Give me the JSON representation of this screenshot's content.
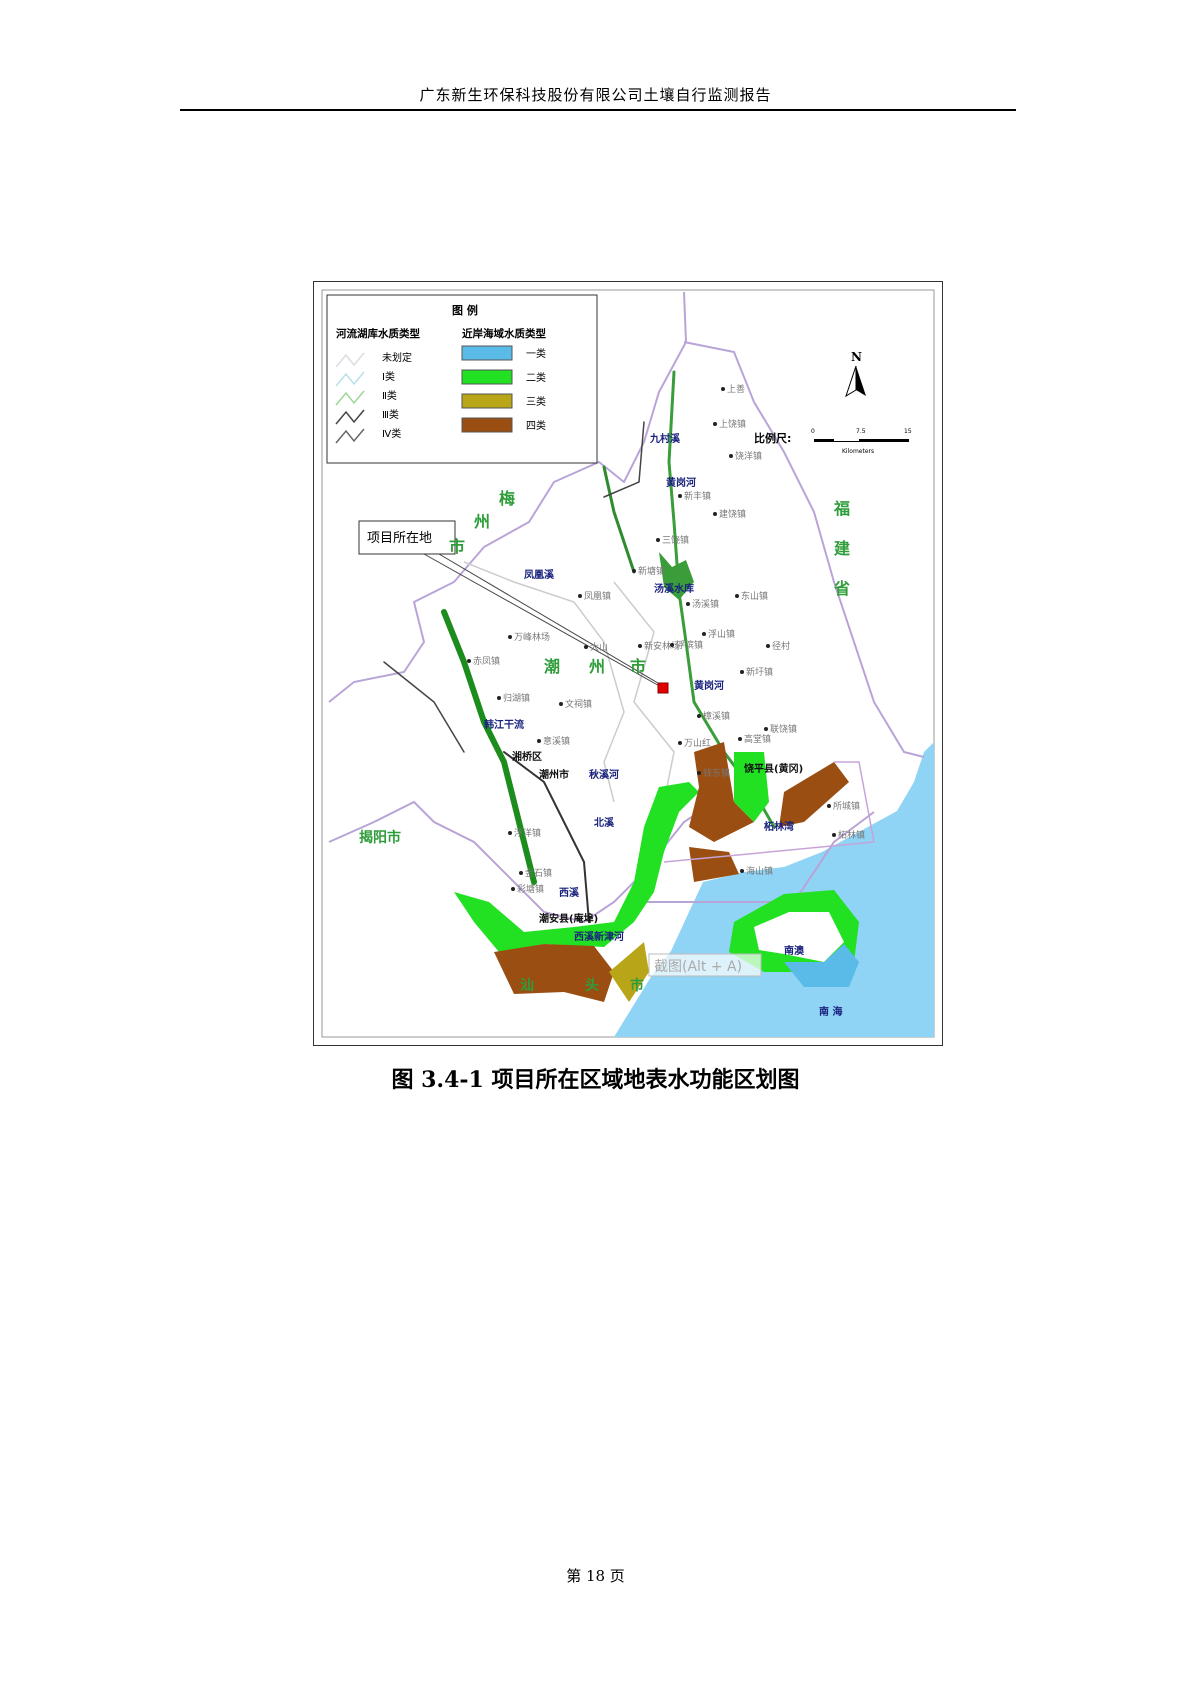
{
  "header": {
    "title": "广东新生环保科技股份有限公司土壤自行监测报告"
  },
  "map": {
    "legend": {
      "title": "图  例",
      "river_heading": "河流湖库水质类型",
      "sea_heading": "近岸海域水质类型",
      "river_items": [
        "未划定",
        "Ⅰ类",
        "Ⅱ类",
        "Ⅲ类",
        "Ⅳ类"
      ],
      "river_colors": [
        "#d9dde3",
        "#b9e0ea",
        "#9fd59a",
        "#444444",
        "#666666"
      ],
      "sea_items": [
        "一类",
        "二类",
        "三类",
        "四类"
      ],
      "sea_colors": [
        "#5bbbe8",
        "#22e022",
        "#b8a618",
        "#9a4e12"
      ]
    },
    "north": "N",
    "scale": {
      "label": "比例尺:",
      "ticks": [
        "0",
        "7.5",
        "15"
      ],
      "unit": "Kilometers"
    },
    "callout": "项目所在地",
    "regions": {
      "fujian": [
        "福",
        "建",
        "省"
      ],
      "meizhou": [
        "梅",
        "州",
        "市"
      ],
      "chaozhou": [
        "潮",
        "州",
        "市"
      ],
      "jieyang": "揭阳市",
      "shantou": [
        "汕",
        "头",
        "市"
      ],
      "nanhai": "南  海",
      "nanao": "南澳"
    },
    "towns": [
      "上善",
      "上饶镇",
      "饶洋镇",
      "新丰镇",
      "建饶镇",
      "三饶镇",
      "新塘镇",
      "东山镇",
      "汤溪镇",
      "浮山镇",
      "凤凰镇",
      "万峰林场",
      "大山",
      "新安林场",
      "浮滨镇",
      "径村",
      "新圩镇",
      "赤凤镇",
      "归湖镇",
      "文祠镇",
      "意溪镇",
      "樟溪镇",
      "高堂镇",
      "联饶镇",
      "万山红",
      "钱东镇",
      "浮洋镇",
      "金石镇",
      "彩塘镇",
      "所城镇",
      "柘林镇",
      "海山镇"
    ],
    "rivers": [
      "九村溪",
      "黄岗河",
      "汤溪水库",
      "凤凰溪",
      "黄岗河",
      "韩江干流",
      "湘桥区",
      "潮州市",
      "秋溪河",
      "北溪",
      "西溪",
      "潮安县(庵埠)",
      "西溪新津河",
      "饶平县(黄冈)",
      "柘林湾"
    ],
    "watermark": "截图(Alt + A)"
  },
  "caption": "图 3.4-1  项目所在区域地表水功能区划图",
  "footer": {
    "page": "第 18 页"
  }
}
